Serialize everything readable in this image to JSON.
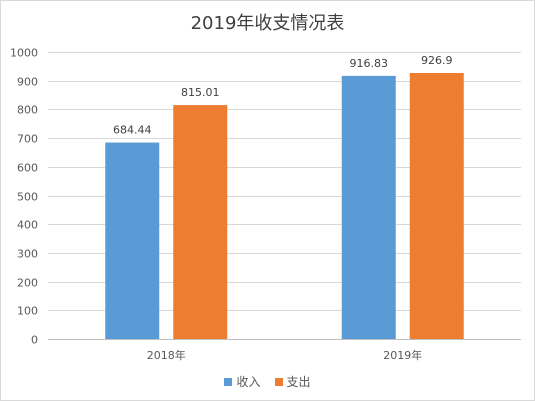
{
  "chart_data": {
    "type": "bar",
    "title": "2019年收支情况表",
    "categories": [
      "2018年",
      "2019年"
    ],
    "series": [
      {
        "name": "收入",
        "color": "#5b9bd5",
        "values": [
          684.44,
          916.83
        ],
        "labels": [
          "684.44",
          "916.83"
        ]
      },
      {
        "name": "支出",
        "color": "#ed7d31",
        "values": [
          815.01,
          926.9
        ],
        "labels": [
          "815.01",
          "926.9"
        ]
      }
    ],
    "ylim": [
      0,
      1000
    ],
    "yticks": [
      0,
      100,
      200,
      300,
      400,
      500,
      600,
      700,
      800,
      900,
      1000
    ],
    "grid": true,
    "legend": "bottom"
  }
}
